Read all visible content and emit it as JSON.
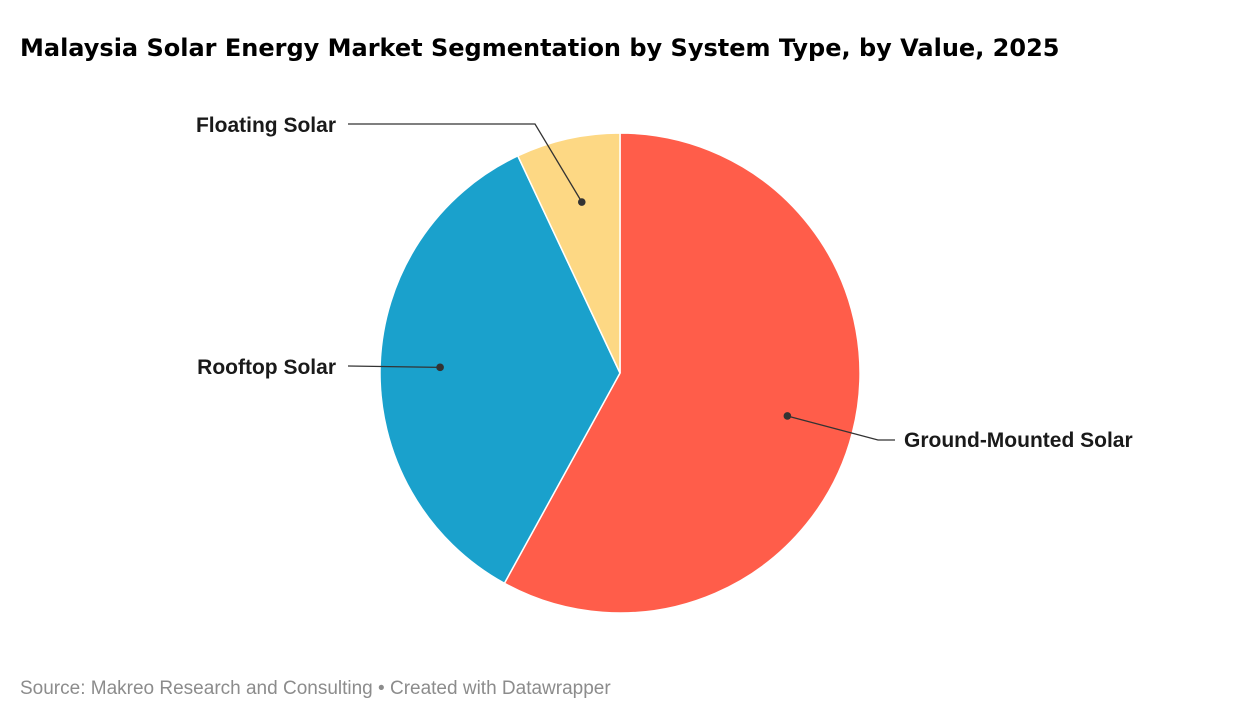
{
  "chart_data": {
    "type": "pie",
    "title": "Malaysia Solar Energy Market Segmentation by System Type, by Value, 2025",
    "slices": [
      {
        "label": "Ground-Mounted Solar",
        "value": 58,
        "color": "#ff5d4a"
      },
      {
        "label": "Rooftop Solar",
        "value": 35,
        "color": "#1aa1cc"
      },
      {
        "label": "Floating Solar",
        "value": 7,
        "color": "#fdd884"
      }
    ],
    "start_angle": "12 o'clock",
    "direction": "clockwise"
  },
  "footer": {
    "source": "Source: Makreo Research and Consulting",
    "separator": "•",
    "credit": "Created with Datawrapper"
  }
}
